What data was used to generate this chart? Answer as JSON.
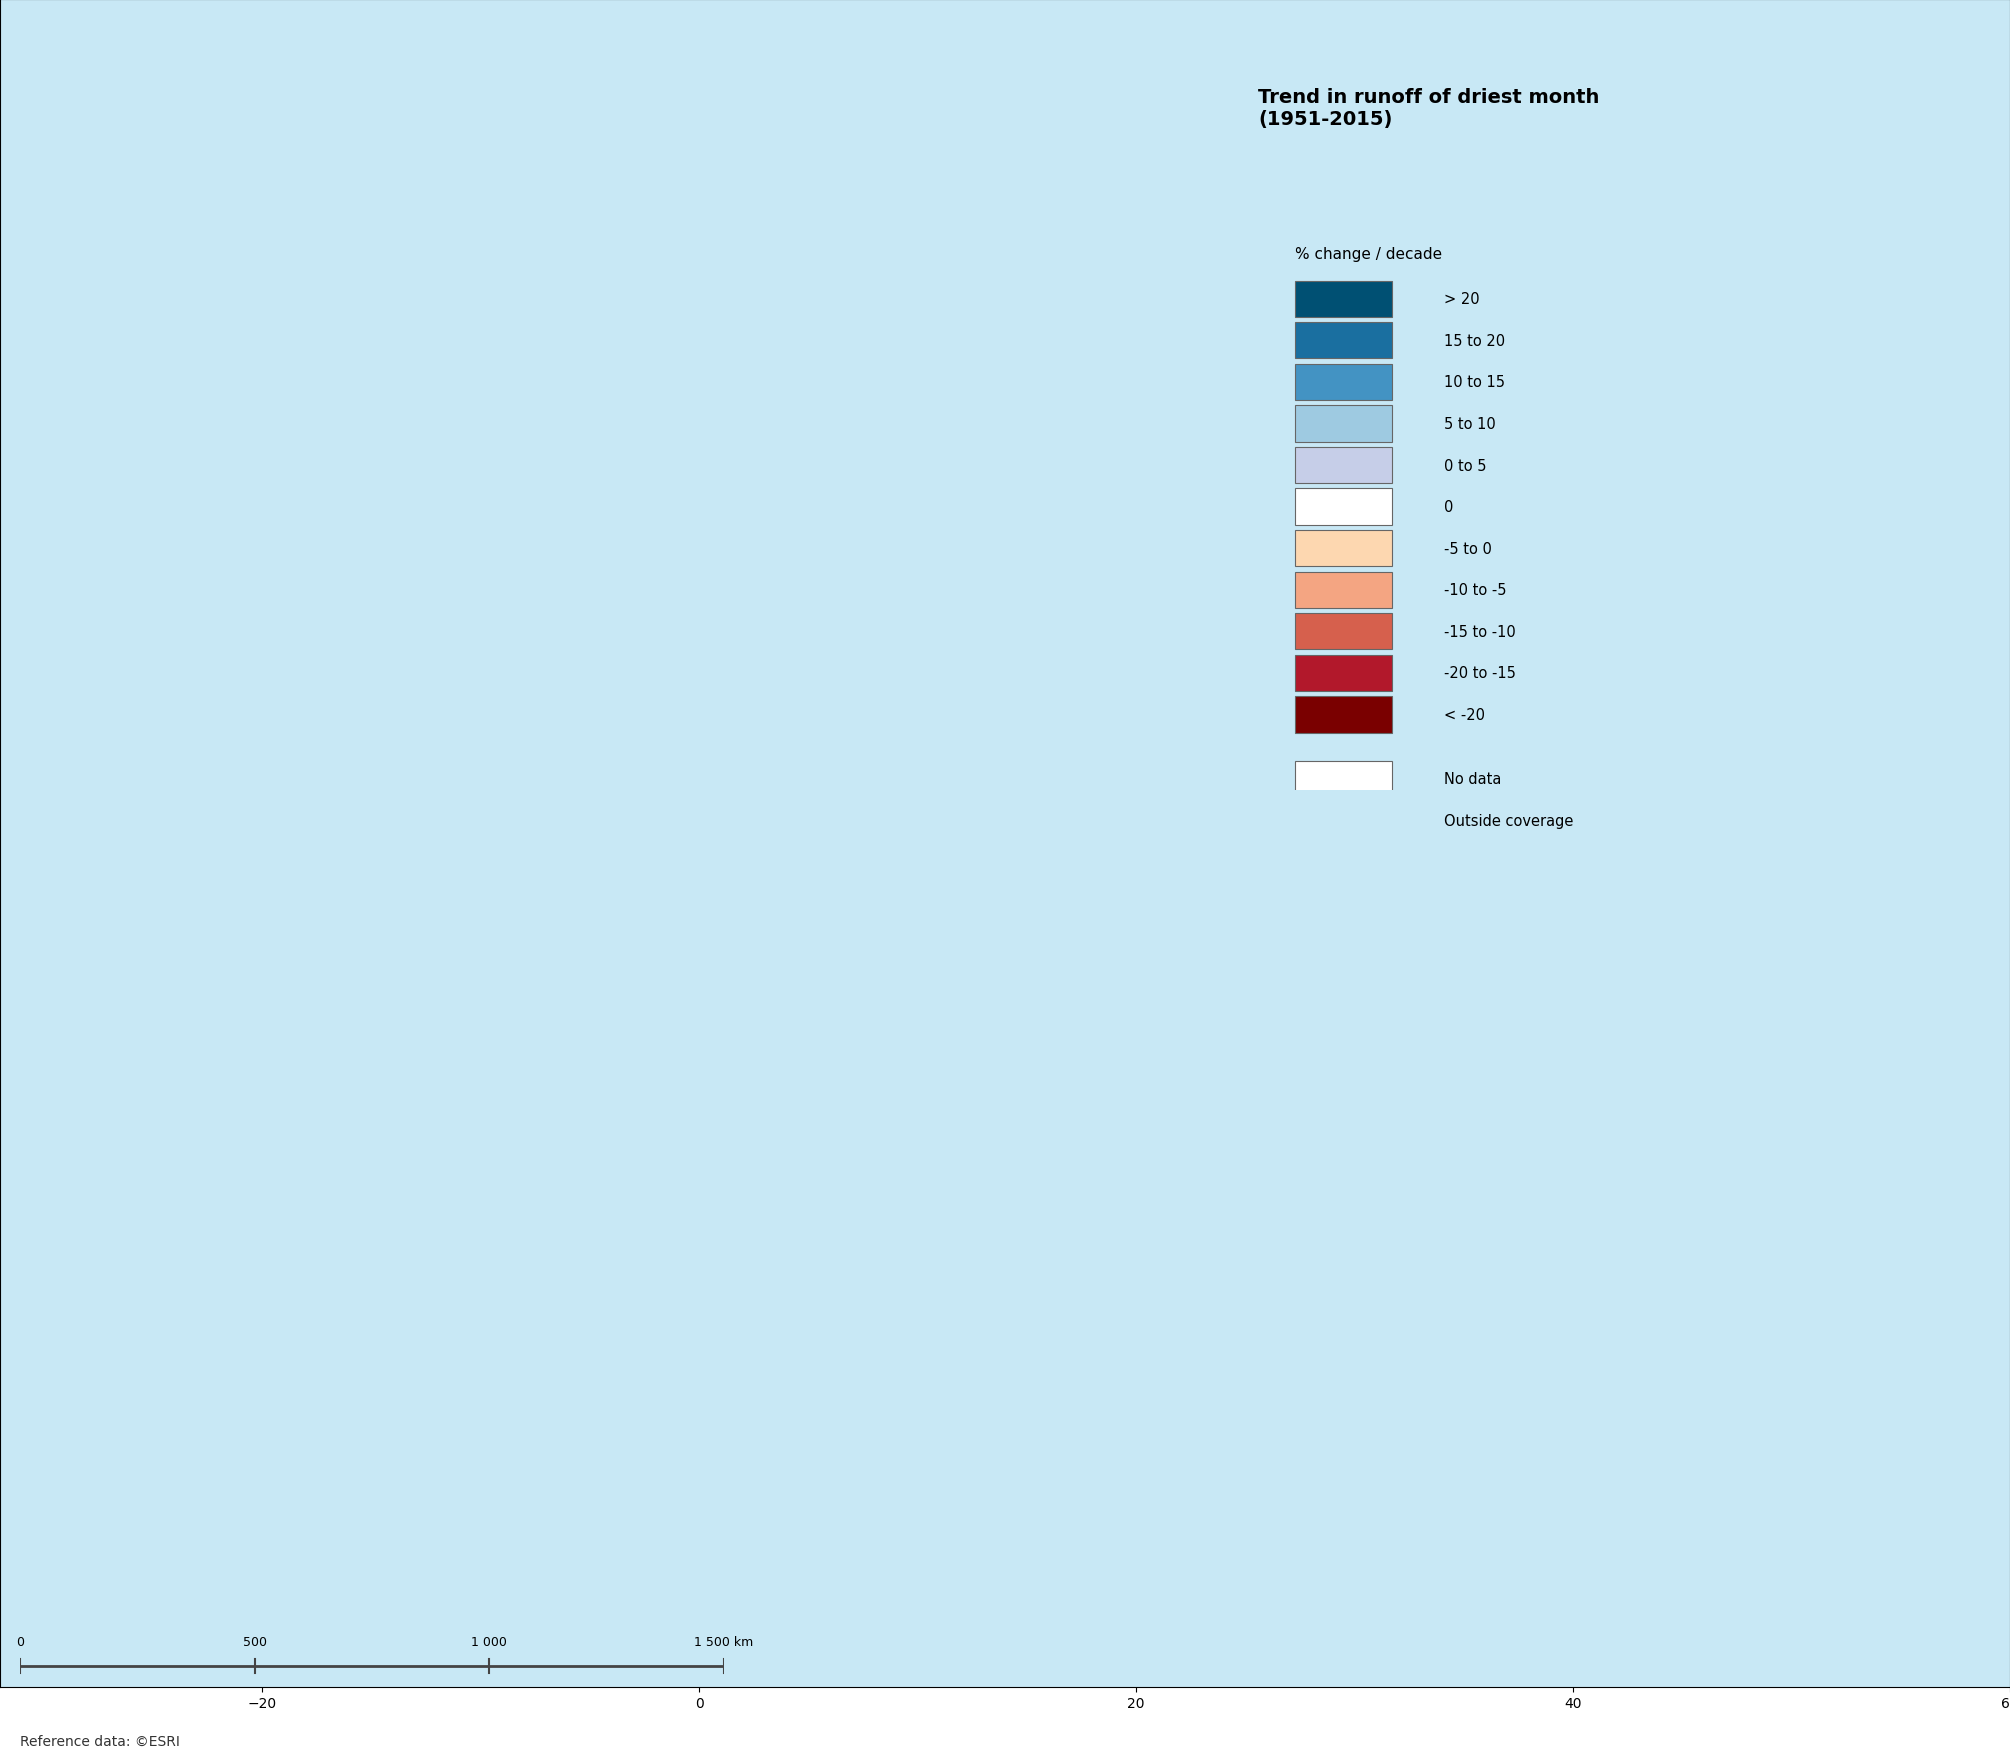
{
  "title": "Trend in runoff of driest month\n(1951-2015)",
  "subtitle": "% change / decade",
  "legend_labels": [
    "> 20",
    "15 to 20",
    "10 to 15",
    "5 to 10",
    "0 to 5",
    "0",
    "-5 to 0",
    "-10 to -5",
    "-15 to -10",
    "-20 to -15",
    "< -20"
  ],
  "legend_colors": [
    "#005073",
    "#1a6fa0",
    "#4393c3",
    "#9ecae1",
    "#c6cee8",
    "#ffffff",
    "#fdd7b0",
    "#f4a582",
    "#d6604d",
    "#b2182b",
    "#7a0000"
  ],
  "no_data_color": "#ffffff",
  "outside_coverage_color": "#b3b3b3",
  "ocean_color": "#c8e8f5",
  "background_color": "#c8e8f5",
  "land_outside_color": "#b3b3b3",
  "map_border_color": "#333333",
  "graticule_color": "#a0d8ef",
  "reference_text": "Reference data: ©ESRI",
  "scale_label": "0       500     1 000     1 500 km",
  "figsize": [
    20.1,
    17.58
  ],
  "dpi": 100
}
